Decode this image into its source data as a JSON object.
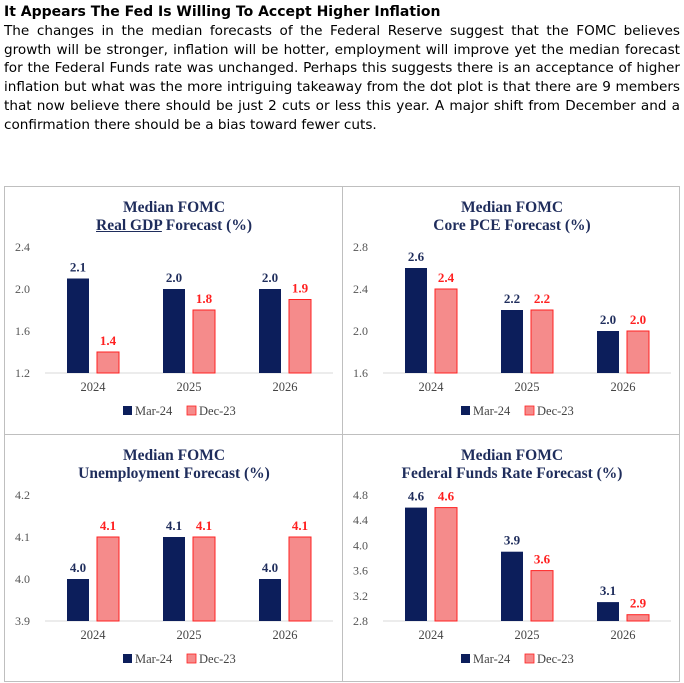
{
  "heading": "It Appears The Fed Is Willing To Accept Higher Inflation",
  "paragraph": "The changes in the median forecasts of the Federal Reserve suggest that the FOMC believes growth will be stronger, inflation will be hotter, employment will improve yet the median forecast for the Federal Funds rate was unchanged. Perhaps this suggests there is an acceptance of higher inflation but what was the more intriguing takeaway from the dot plot is that there are 9 members that now believe there should be just 2 cuts or less this year. A major shift from December and a confirmation there should be a bias toward fewer cuts.",
  "colors": {
    "mar24": "#0c1e5b",
    "dec23": "#f58b8b",
    "dec23_label": "#ff2020",
    "mar24_label": "#1f2d5c"
  },
  "chart_data": [
    {
      "type": "bar",
      "title": "Median FOMC",
      "subtitle_underlined": "Real GDP",
      "subtitle_rest": " Forecast (%)",
      "categories": [
        "2024",
        "2025",
        "2026"
      ],
      "ylim": [
        1.2,
        2.4
      ],
      "yticks": [
        "1.2",
        "1.6",
        "2.0",
        "2.4"
      ],
      "series": [
        {
          "name": "Mar-24",
          "values": [
            2.1,
            2.0,
            2.0
          ],
          "labels": [
            "2.1",
            "2.0",
            "2.0"
          ]
        },
        {
          "name": "Dec-23",
          "values": [
            1.4,
            1.8,
            1.9
          ],
          "labels": [
            "1.4",
            "1.8",
            "1.9"
          ]
        }
      ],
      "legend": "bottom"
    },
    {
      "type": "bar",
      "title": "Median FOMC",
      "subtitle_underlined": "",
      "subtitle_rest": "Core PCE Forecast (%)",
      "categories": [
        "2024",
        "2025",
        "2026"
      ],
      "ylim": [
        1.6,
        2.8
      ],
      "yticks": [
        "1.6",
        "2.0",
        "2.4",
        "2.8"
      ],
      "series": [
        {
          "name": "Mar-24",
          "values": [
            2.6,
            2.2,
            2.0
          ],
          "labels": [
            "2.6",
            "2.2",
            "2.0"
          ]
        },
        {
          "name": "Dec-23",
          "values": [
            2.4,
            2.2,
            2.0
          ],
          "labels": [
            "2.4",
            "2.2",
            "2.0"
          ]
        }
      ],
      "legend": "bottom"
    },
    {
      "type": "bar",
      "title": "Median FOMC",
      "subtitle_underlined": "",
      "subtitle_rest": "Unemployment Forecast (%)",
      "categories": [
        "2024",
        "2025",
        "2026"
      ],
      "ylim": [
        3.9,
        4.2
      ],
      "yticks": [
        "3.9",
        "4.0",
        "4.1",
        "4.2"
      ],
      "series": [
        {
          "name": "Mar-24",
          "values": [
            4.0,
            4.1,
            4.0
          ],
          "labels": [
            "4.0",
            "4.1",
            "4.0"
          ]
        },
        {
          "name": "Dec-23",
          "values": [
            4.1,
            4.1,
            4.1
          ],
          "labels": [
            "4.1",
            "4.1",
            "4.1"
          ]
        }
      ],
      "legend": "bottom"
    },
    {
      "type": "bar",
      "title": "Median FOMC",
      "subtitle_underlined": "",
      "subtitle_rest": "Federal Funds Rate Forecast (%)",
      "categories": [
        "2024",
        "2025",
        "2026"
      ],
      "ylim": [
        2.8,
        4.8
      ],
      "yticks": [
        "2.8",
        "3.2",
        "3.6",
        "4.0",
        "4.4",
        "4.8"
      ],
      "series": [
        {
          "name": "Mar-24",
          "values": [
            4.6,
            3.9,
            3.1
          ],
          "labels": [
            "4.6",
            "3.9",
            "3.1"
          ]
        },
        {
          "name": "Dec-23",
          "values": [
            4.6,
            3.6,
            2.9
          ],
          "labels": [
            "4.6",
            "3.6",
            "2.9"
          ]
        }
      ],
      "legend": "bottom"
    }
  ]
}
